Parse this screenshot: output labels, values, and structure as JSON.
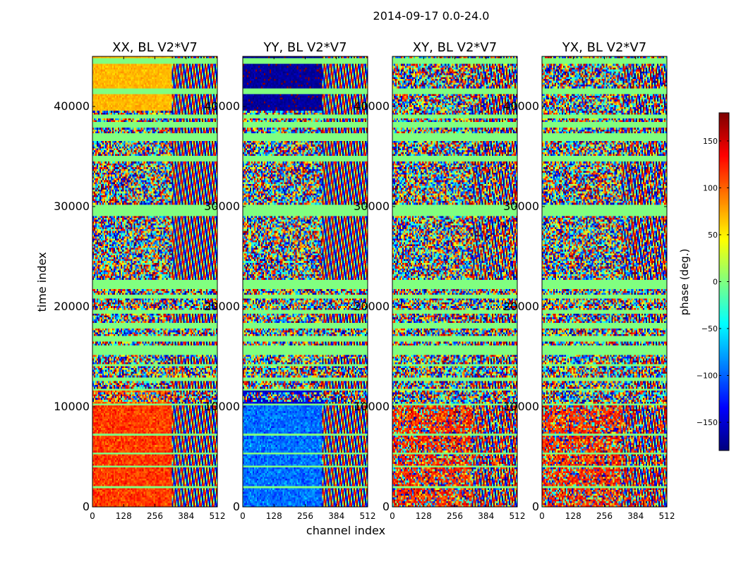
{
  "figure": {
    "suptitle": "2014-09-17 0.0-24.0",
    "ylabel": "time index",
    "xlabel": "channel index",
    "colorbar_label": "phase (deg.)"
  },
  "chart_data": [
    {
      "type": "heatmap",
      "title": "XX, BL V2*V7",
      "pattern": "xx",
      "xlim": [
        0,
        512
      ],
      "ylim": [
        0,
        45000
      ],
      "xticks": [
        "0",
        "128",
        "256",
        "384",
        "512"
      ],
      "yticks": [
        "0",
        "10000",
        "20000",
        "30000",
        "40000"
      ]
    },
    {
      "type": "heatmap",
      "title": "YY, BL V2*V7",
      "pattern": "yy",
      "xlim": [
        0,
        512
      ],
      "ylim": [
        0,
        45000
      ],
      "xticks": [
        "0",
        "128",
        "256",
        "384",
        "512"
      ],
      "yticks": [
        "0",
        "10000",
        "20000",
        "30000",
        "40000"
      ]
    },
    {
      "type": "heatmap",
      "title": "XY, BL V2*V7",
      "pattern": "cross",
      "xlim": [
        0,
        512
      ],
      "ylim": [
        0,
        45000
      ],
      "xticks": [
        "0",
        "128",
        "256",
        "384",
        "512"
      ],
      "yticks": [
        "0",
        "10000",
        "20000",
        "30000",
        "40000"
      ]
    },
    {
      "type": "heatmap",
      "title": "YX, BL V2*V7",
      "pattern": "cross",
      "xlim": [
        0,
        512
      ],
      "ylim": [
        0,
        45000
      ],
      "xticks": [
        "0",
        "128",
        "256",
        "384",
        "512"
      ],
      "yticks": [
        "0",
        "10000",
        "20000",
        "30000",
        "40000"
      ]
    }
  ],
  "colorbar": {
    "range": [
      -180,
      180
    ],
    "ticks": [
      "150",
      "100",
      "50",
      "0",
      "−50",
      "−100",
      "−150"
    ],
    "colormap": "jet"
  }
}
